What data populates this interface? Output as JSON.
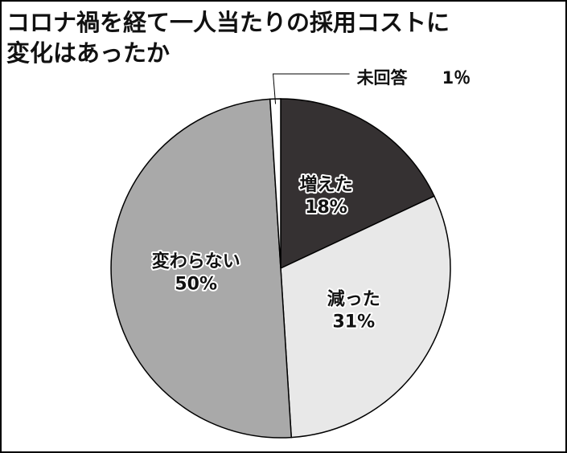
{
  "chart_data": {
    "type": "pie",
    "title": [
      "コロナ禍を経て一人当たりの採用コストに",
      "変化はあったか"
    ],
    "categories": [
      "増えた",
      "減った",
      "変わらない",
      "未回答"
    ],
    "values": [
      18,
      31,
      50,
      1
    ],
    "value_labels": [
      "18%",
      "31%",
      "50%",
      "1％"
    ],
    "colors": [
      "#353132",
      "#e8e8e8",
      "#a9a9a9",
      "#ffffff"
    ]
  }
}
